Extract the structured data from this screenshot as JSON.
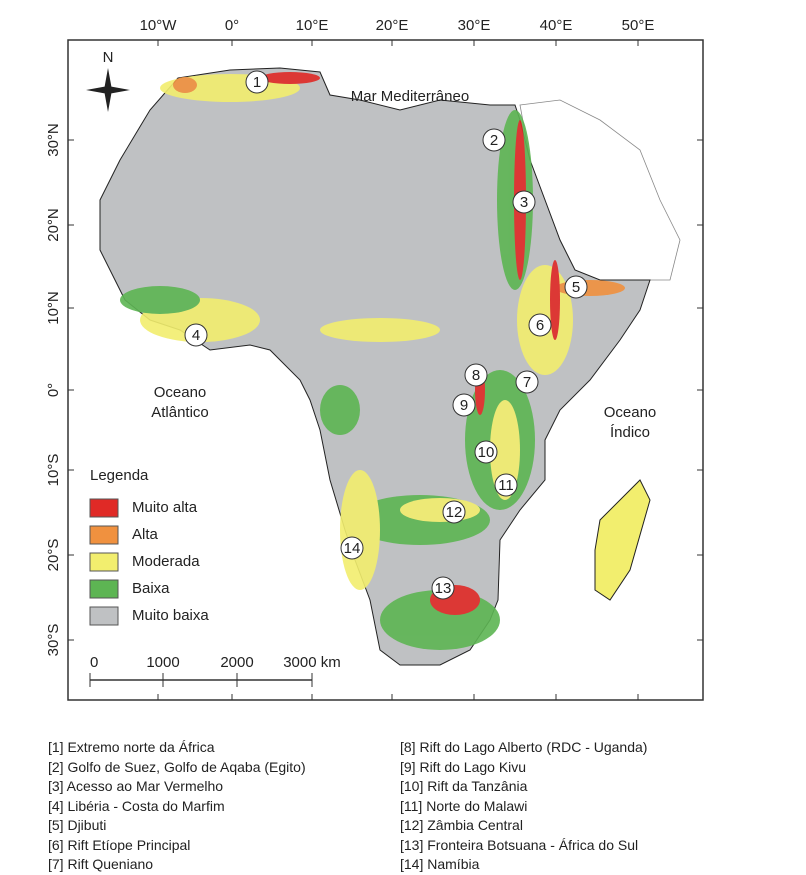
{
  "map": {
    "x_ticks": [
      "10°W",
      "0°",
      "10°E",
      "20°E",
      "30°E",
      "40°E",
      "50°E"
    ],
    "y_ticks": [
      "30°N",
      "20°N",
      "10°N",
      "0°",
      "10°S",
      "20°S",
      "30°S"
    ],
    "north": "N",
    "sea_labels": [
      [
        "Mar Mediterrâneo"
      ],
      [
        "Oceano",
        "Atlântico"
      ],
      [
        "Oceano",
        "Índico"
      ]
    ],
    "legend": {
      "title": "Legenda",
      "items": [
        {
          "name": "Muito alta",
          "color": "#e02a26"
        },
        {
          "name": "Alta",
          "color": "#f0913f"
        },
        {
          "name": "Moderada",
          "color": "#f2ee6e"
        },
        {
          "name": "Baixa",
          "color": "#5db553"
        },
        {
          "name": "Muito baixa",
          "color": "#bfc1c3"
        }
      ]
    },
    "scale": [
      "0",
      "1000",
      "2000",
      "3000 km"
    ],
    "markers": [
      "1",
      "2",
      "3",
      "4",
      "5",
      "6",
      "7",
      "8",
      "9",
      "10",
      "11",
      "12",
      "13",
      "14"
    ],
    "notes_left": [
      "[1] Extremo norte da África",
      "[2] Golfo de Suez, Golfo de Aqaba (Egito)",
      "[3] Acesso ao Mar Vermelho",
      "[4] Libéria - Costa do Marfim",
      "[5] Djibuti",
      "[6] Rift Etíope Principal",
      "[7] Rift Queniano"
    ],
    "notes_right": [
      "[8] Rift do Lago Alberto (RDC - Uganda)",
      "[9] Rift do Lago Kivu",
      "[10] Rift da Tanzânia",
      "[11] Norte do Malawi",
      "[12] Zâmbia Central",
      "[13] Fronteira Botsuana - África do Sul",
      "[14] Namíbia"
    ]
  }
}
